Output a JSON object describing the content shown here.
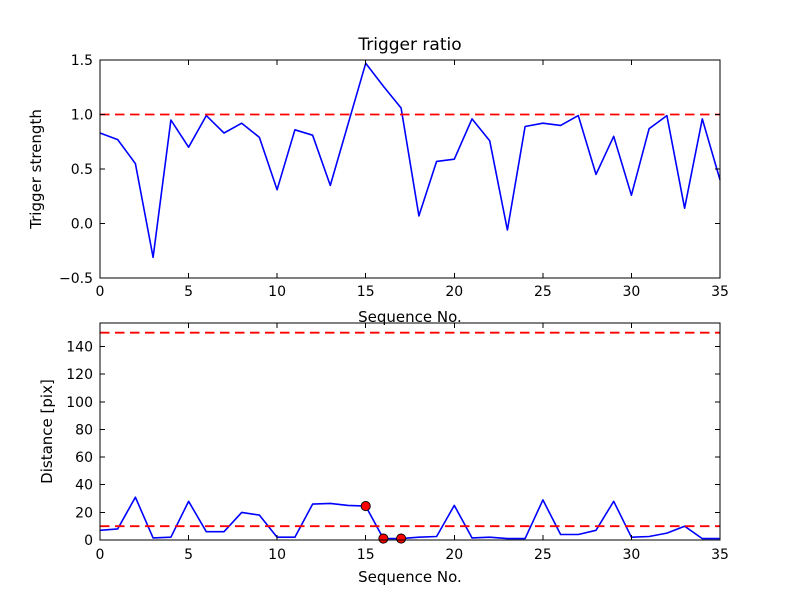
{
  "figure": {
    "background": "#ffffff",
    "title": "Trigger ratio"
  },
  "colors": {
    "line": "#0000ff",
    "threshold": "#ff0000",
    "marker_fill": "#ff0000",
    "marker_edge": "#000000",
    "axis": "#000000"
  },
  "chart_data": [
    {
      "type": "line",
      "title": "Trigger ratio",
      "xlabel": "Sequence No.",
      "ylabel": "Trigger strength",
      "xlim": [
        0,
        35
      ],
      "ylim": [
        -0.5,
        1.5
      ],
      "grid": false,
      "legend": "none",
      "xticks": [
        0,
        5,
        10,
        15,
        20,
        25,
        30,
        35
      ],
      "xtick_labels": [
        "0",
        "5",
        "10",
        "15",
        "20",
        "25",
        "30",
        "35"
      ],
      "yticks": [
        -0.5,
        0.0,
        0.5,
        1.0,
        1.5
      ],
      "ytick_labels": [
        "−0.5",
        "0.0",
        "0.5",
        "1.0",
        "1.5"
      ],
      "x": [
        0,
        1,
        2,
        3,
        4,
        5,
        6,
        7,
        8,
        9,
        10,
        11,
        12,
        13,
        14,
        15,
        16,
        17,
        18,
        19,
        20,
        21,
        22,
        23,
        24,
        25,
        26,
        27,
        28,
        29,
        30,
        31,
        32,
        33,
        34,
        35
      ],
      "series": [
        {
          "name": "trigger-strength",
          "color": "#0000ff",
          "values": [
            0.83,
            0.77,
            0.55,
            -0.31,
            0.95,
            0.7,
            0.99,
            0.83,
            0.92,
            0.79,
            0.31,
            0.86,
            0.81,
            0.35,
            0.91,
            1.47,
            1.26,
            1.06,
            0.07,
            0.57,
            0.59,
            0.96,
            0.76,
            -0.06,
            0.89,
            0.92,
            0.9,
            0.99,
            0.45,
            0.8,
            0.26,
            0.87,
            0.99,
            0.14,
            0.96,
            0.4
          ]
        }
      ],
      "hlines": [
        {
          "y": 1.0,
          "color": "#ff0000",
          "style": "dashed"
        }
      ]
    },
    {
      "type": "line",
      "title": "",
      "xlabel": "Sequence No.",
      "ylabel": "Distance [pix]",
      "xlim": [
        0,
        35
      ],
      "ylim": [
        0,
        157
      ],
      "grid": false,
      "legend": "none",
      "xticks": [
        0,
        5,
        10,
        15,
        20,
        25,
        30,
        35
      ],
      "xtick_labels": [
        "0",
        "5",
        "10",
        "15",
        "20",
        "25",
        "30",
        "35"
      ],
      "yticks": [
        0,
        20,
        40,
        60,
        80,
        100,
        120,
        140
      ],
      "ytick_labels": [
        "0",
        "20",
        "40",
        "60",
        "80",
        "100",
        "120",
        "140"
      ],
      "x": [
        0,
        1,
        2,
        3,
        4,
        5,
        6,
        7,
        8,
        9,
        10,
        11,
        12,
        13,
        14,
        15,
        16,
        17,
        18,
        19,
        20,
        21,
        22,
        23,
        24,
        25,
        26,
        27,
        28,
        29,
        30,
        31,
        32,
        33,
        34,
        35
      ],
      "series": [
        {
          "name": "distance",
          "color": "#0000ff",
          "values": [
            7,
            8,
            31,
            1.5,
            2,
            28,
            6,
            6,
            20,
            18,
            2,
            2,
            26,
            26.5,
            25,
            24.5,
            1,
            1,
            2,
            2.5,
            25,
            1.5,
            2,
            1,
            1,
            29,
            4,
            4,
            7,
            28,
            2,
            2.5,
            5,
            10,
            1,
            1
          ]
        }
      ],
      "hlines": [
        {
          "y": 150,
          "color": "#ff0000",
          "style": "dashed"
        },
        {
          "y": 10,
          "color": "#ff0000",
          "style": "dashed"
        }
      ],
      "markers": {
        "shape": "circle",
        "color": "#ff0000",
        "edge": "#000000",
        "points": [
          [
            15,
            24.5
          ],
          [
            16,
            1
          ],
          [
            17,
            1
          ]
        ]
      }
    }
  ]
}
